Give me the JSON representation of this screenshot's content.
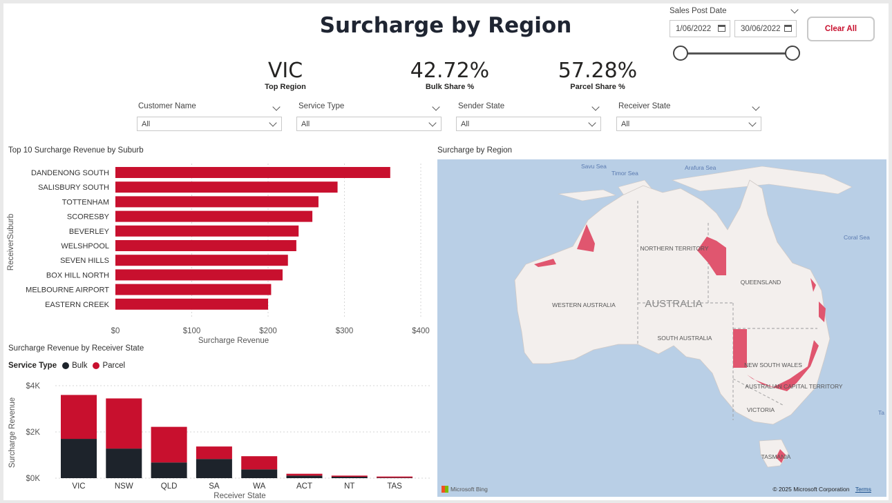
{
  "title": "Surcharge by Region",
  "kpis": [
    {
      "value": "VIC",
      "label": "Top Region"
    },
    {
      "value": "42.72%",
      "label": "Bulk Share %"
    },
    {
      "value": "57.28%",
      "label": "Parcel Share %"
    }
  ],
  "date_filter": {
    "label": "Sales Post Date",
    "start": "1/06/2022",
    "end": "30/06/2022",
    "range_start": 0.0,
    "range_end": 1.0
  },
  "clear_button": "Clear All",
  "slicers": [
    {
      "label": "Customer Name",
      "value": "All"
    },
    {
      "label": "Service Type",
      "value": "All"
    },
    {
      "label": "Sender State",
      "value": "All"
    },
    {
      "label": "Receiver State",
      "value": "All"
    }
  ],
  "chart_data": [
    {
      "type": "bar",
      "orientation": "horizontal",
      "title": "Top 10 Surcharge Revenue by Suburb",
      "xlabel": "Surcharge Revenue",
      "ylabel": "ReceiverSuburb",
      "categories": [
        "DANDENONG SOUTH",
        "SALISBURY SOUTH",
        "TOTTENHAM",
        "SCORESBY",
        "BEVERLEY",
        "WELSHPOOL",
        "SEVEN HILLS",
        "BOX HILL NORTH",
        "MELBOURNE AIRPORT",
        "EASTERN CREEK"
      ],
      "values": [
        360,
        291,
        266,
        258,
        240,
        237,
        226,
        219,
        204,
        200
      ],
      "xlim": [
        0,
        400
      ],
      "xticks": [
        "$0",
        "$100",
        "$200",
        "$300",
        "$400"
      ],
      "color": "#c8102e"
    },
    {
      "type": "bar",
      "stacked": true,
      "title": "Surcharge Revenue by Receiver State",
      "xlabel": "Receiver State",
      "ylabel": "Surcharge Revenue",
      "legend_title": "Service Type",
      "categories": [
        "VIC",
        "NSW",
        "QLD",
        "SA",
        "WA",
        "ACT",
        "NT",
        "TAS"
      ],
      "series": [
        {
          "name": "Bulk",
          "color": "#1d232b",
          "values": [
            1700,
            1280,
            680,
            830,
            380,
            110,
            60,
            20
          ]
        },
        {
          "name": "Parcel",
          "color": "#c8102e",
          "values": [
            1900,
            2170,
            1540,
            540,
            570,
            80,
            50,
            50
          ]
        }
      ],
      "ylim": [
        0,
        4000
      ],
      "yticks": [
        "$0K",
        "$2K",
        "$4K"
      ]
    }
  ],
  "map": {
    "title": "Surcharge by Region",
    "country": "AUSTRALIA",
    "regions": [
      "WESTERN AUSTRALIA",
      "NORTHERN TERRITORY",
      "SOUTH AUSTRALIA",
      "QUEENSLAND",
      "NEW SOUTH WALES",
      "AUSTRALIAN CAPITAL TERRITORY",
      "VICTORIA",
      "TASMANIA"
    ],
    "seas": [
      "Savu Sea",
      "Timor Sea",
      "Arafura Sea",
      "Coral Sea",
      "Ta"
    ],
    "credit": "Microsoft Bing",
    "copyright": "© 2025 Microsoft Corporation",
    "terms": "Terms",
    "highlight_color": "#e0566f"
  }
}
